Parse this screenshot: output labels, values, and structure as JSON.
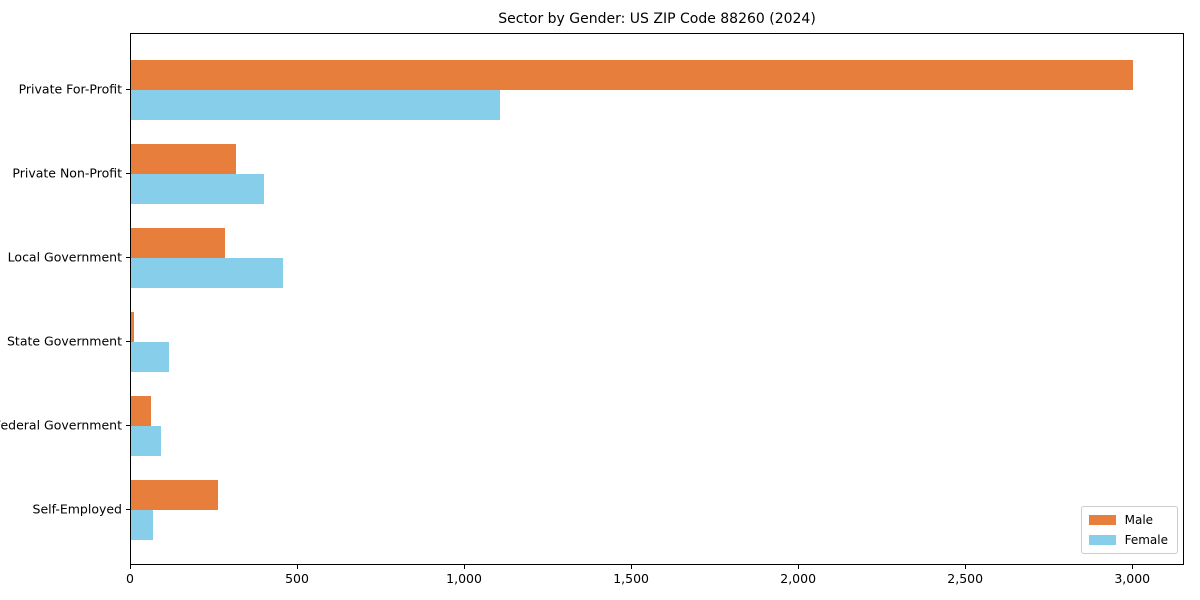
{
  "chart_data": {
    "type": "bar",
    "orientation": "horizontal",
    "title": "Sector by Gender: US ZIP Code 88260 (2024)",
    "categories": [
      "Private For-Profit",
      "Private Non-Profit",
      "Local Government",
      "State Government",
      "Federal Government",
      "Self-Employed"
    ],
    "series": [
      {
        "name": "Male",
        "color": "#e87e3c",
        "values": [
          3005,
          315,
          282,
          9,
          61,
          260
        ]
      },
      {
        "name": "Female",
        "color": "#87ceeb",
        "values": [
          1108,
          400,
          455,
          115,
          91,
          67
        ]
      }
    ],
    "xlabel": "",
    "ylabel": "",
    "xlim": [
      0,
      3155
    ],
    "xticks": [
      0,
      500,
      1000,
      1500,
      2000,
      2500,
      3000
    ],
    "xtick_labels": [
      "0",
      "500",
      "1,000",
      "1,500",
      "2,000",
      "2,500",
      "3,000"
    ],
    "grid": false,
    "legend": {
      "position": "lower right",
      "entries": [
        "Male",
        "Female"
      ]
    },
    "colors": {
      "male": "#e87e3c",
      "female": "#87ceeb",
      "axis": "#000000",
      "legend_border": "#cccccc",
      "background": "#ffffff"
    }
  }
}
